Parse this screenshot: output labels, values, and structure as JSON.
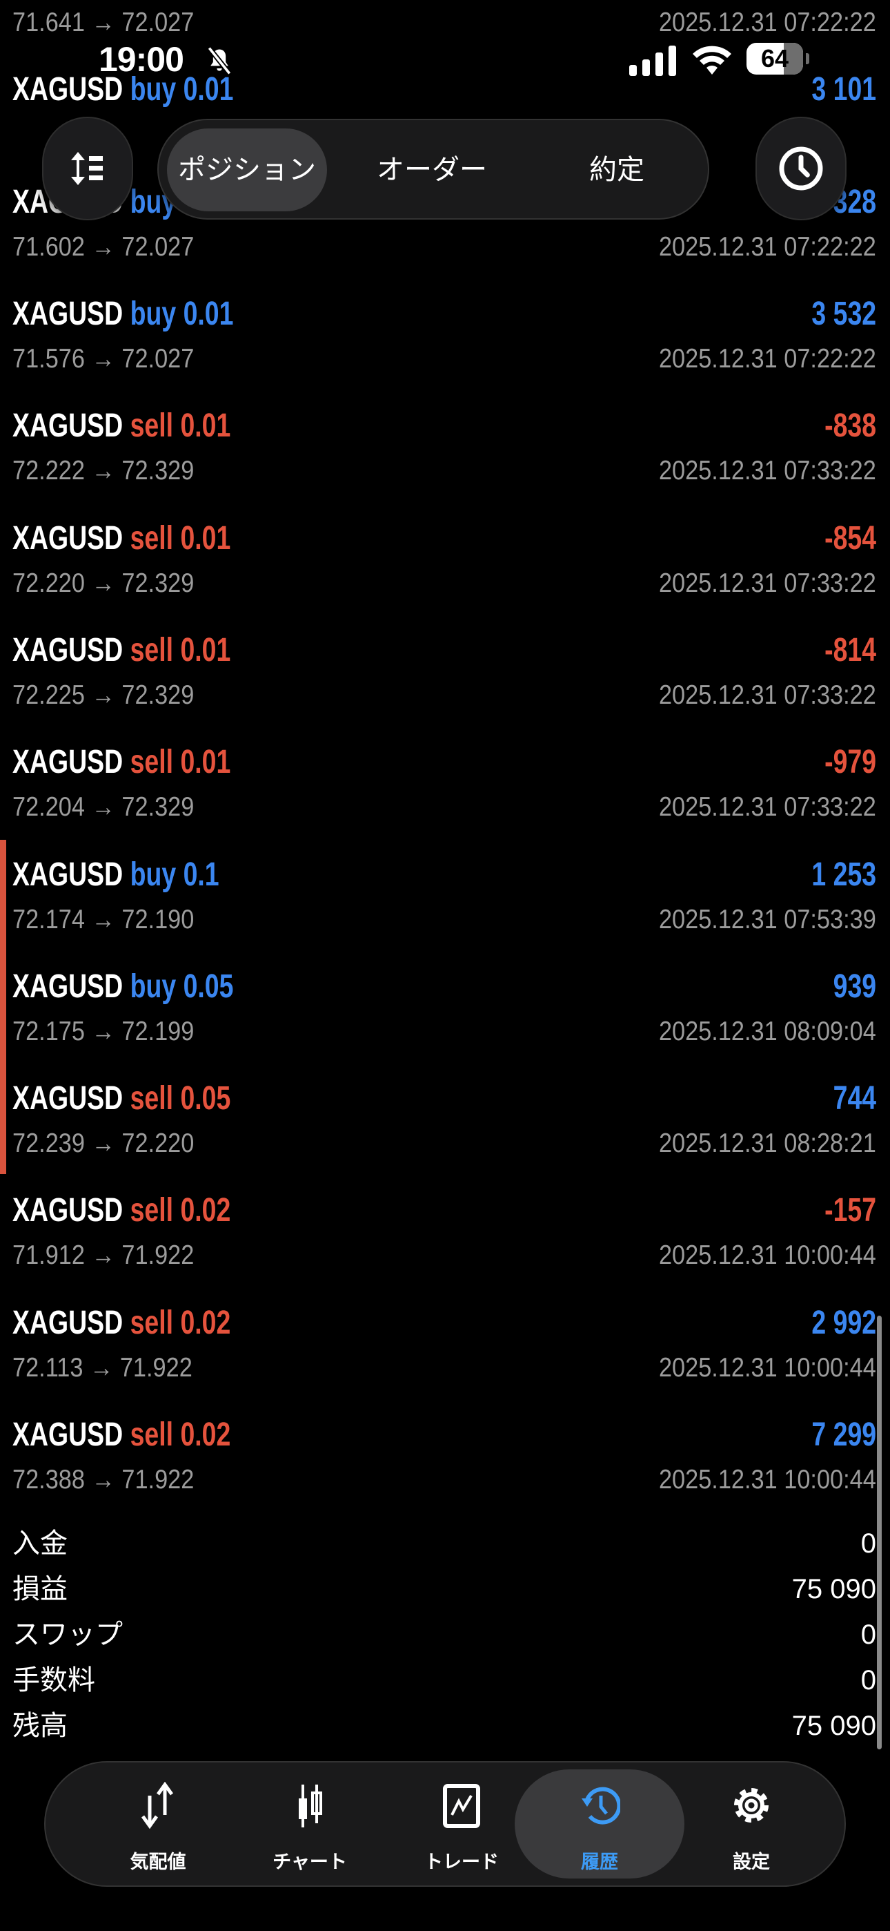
{
  "status_bar": {
    "time": "19:00",
    "battery": "64"
  },
  "tabs": [
    {
      "label": "ポジション",
      "active": true
    },
    {
      "label": "オーダー",
      "active": false
    },
    {
      "label": "約定",
      "active": false
    }
  ],
  "deals": [
    {
      "symbol": "",
      "side": "",
      "lot": "",
      "amount": "",
      "prices": "71.641 → 72.027",
      "date": "2025.12.31 07:22:22"
    },
    {
      "symbol": "XAGUSD",
      "side": "buy",
      "lot": "0.01",
      "amount": "3 101",
      "prices": "",
      "date": ""
    },
    {
      "symbol": "XAGUSD",
      "side": "buy",
      "lot": "",
      "amount": "328",
      "prices": "71.602 → 72.027",
      "date": "2025.12.31 07:22:22"
    },
    {
      "symbol": "XAGUSD",
      "side": "buy",
      "lot": "0.01",
      "amount": "3 532",
      "amount_sign": "positive",
      "prices": "71.576 → 72.027",
      "date": "2025.12.31 07:22:22"
    },
    {
      "symbol": "XAGUSD",
      "side": "sell",
      "lot": "0.01",
      "amount": "-838",
      "prices": "72.222 → 72.329",
      "date": "2025.12.31 07:33:22"
    },
    {
      "symbol": "XAGUSD",
      "side": "sell",
      "lot": "0.01",
      "amount": "-854",
      "prices": "72.220 → 72.329",
      "date": "2025.12.31 07:33:22"
    },
    {
      "symbol": "XAGUSD",
      "side": "sell",
      "lot": "0.01",
      "amount": "-814",
      "prices": "72.225 → 72.329",
      "date": "2025.12.31 07:33:22"
    },
    {
      "symbol": "XAGUSD",
      "side": "sell",
      "lot": "0.01",
      "amount": "-979",
      "prices": "72.204 → 72.329",
      "date": "2025.12.31 07:33:22"
    },
    {
      "symbol": "XAGUSD",
      "side": "buy",
      "lot": "0.1",
      "amount": "1 253",
      "prices": "72.174 → 72.190",
      "date": "2025.12.31 07:53:39",
      "marked": true
    },
    {
      "symbol": "XAGUSD",
      "side": "buy",
      "lot": "0.05",
      "amount": "939",
      "prices": "72.175 → 72.199",
      "date": "2025.12.31 08:09:04",
      "marked": true
    },
    {
      "symbol": "XAGUSD",
      "side": "sell",
      "lot": "0.05",
      "amount": "744",
      "prices": "72.239 → 72.220",
      "date": "2025.12.31 08:28:21",
      "marked": true
    },
    {
      "symbol": "XAGUSD",
      "side": "sell",
      "lot": "0.02",
      "amount": "-157",
      "prices": "71.912 → 71.922",
      "date": "2025.12.31 10:00:44"
    },
    {
      "symbol": "XAGUSD",
      "side": "sell",
      "lot": "0.02",
      "amount": "2 992",
      "prices": "72.113 → 71.922",
      "date": "2025.12.31 10:00:44"
    },
    {
      "symbol": "XAGUSD",
      "side": "sell",
      "lot": "0.02",
      "amount": "7 299",
      "prices": "72.388 → 71.922",
      "date": "2025.12.31 10:00:44"
    }
  ],
  "summary": [
    {
      "label": "入金",
      "value": "0"
    },
    {
      "label": "損益",
      "value": "75 090"
    },
    {
      "label": "スワップ",
      "value": "0"
    },
    {
      "label": "手数料",
      "value": "0"
    },
    {
      "label": "残高",
      "value": "75 090"
    }
  ],
  "nav": [
    {
      "label": "気配値",
      "icon": "quotes-arrows-icon"
    },
    {
      "label": "チャート",
      "icon": "candlestick-icon"
    },
    {
      "label": "トレード",
      "icon": "trade-chart-icon"
    },
    {
      "label": "履歴",
      "icon": "history-icon",
      "active": true
    },
    {
      "label": "設定",
      "icon": "gear-icon"
    }
  ],
  "colors": {
    "buy": "#3b86f0",
    "sell": "#e5533d",
    "profit": "#3b86f0",
    "loss": "#e5533d",
    "active_nav": "#3d9bf5",
    "marker": "#d9533d"
  }
}
